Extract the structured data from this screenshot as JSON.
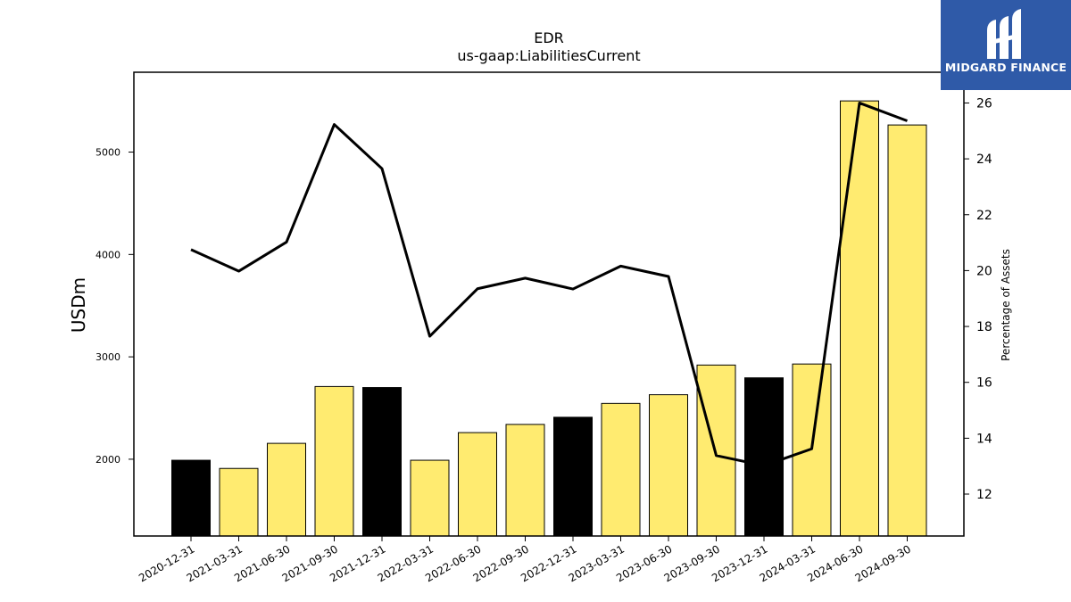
{
  "chart_data": {
    "type": "bar",
    "title": "EDR",
    "subtitle": "us-gaap:LiabilitiesCurrent",
    "ylabel": "USDm",
    "y2label": "Percentage of Assets",
    "categories": [
      "2020-12-31",
      "2021-03-31",
      "2021-06-30",
      "2021-09-30",
      "2021-12-31",
      "2022-03-31",
      "2022-06-30",
      "2022-09-30",
      "2022-12-31",
      "2023-03-31",
      "2023-06-30",
      "2023-09-30",
      "2023-12-31",
      "2024-03-31",
      "2024-06-30",
      "2024-09-30"
    ],
    "series": [
      {
        "type": "bar",
        "values": [
          1990,
          1910,
          2155,
          2710,
          2700,
          1990,
          2260,
          2340,
          2410,
          2545,
          2630,
          2920,
          2795,
          2930,
          5500,
          5265
        ],
        "colors": [
          "#000000",
          "#ffeb70",
          "#ffeb70",
          "#ffeb70",
          "#000000",
          "#ffeb70",
          "#ffeb70",
          "#ffeb70",
          "#000000",
          "#ffeb70",
          "#ffeb70",
          "#ffeb70",
          "#000000",
          "#ffeb70",
          "#ffeb70",
          "#ffeb70"
        ]
      },
      {
        "type": "line",
        "axis": "right",
        "values": [
          20.75,
          19.98,
          21.02,
          25.23,
          23.65,
          17.65,
          19.35,
          19.73,
          19.34,
          20.16,
          19.79,
          13.38,
          13.02,
          13.62,
          26.0,
          25.36
        ],
        "color": "#000000"
      }
    ],
    "yticks": [
      2000,
      3000,
      4000,
      5000
    ],
    "y2ticks": [
      12,
      14,
      16,
      18,
      20,
      22,
      24,
      26
    ],
    "ylim": [
      1250,
      5780
    ],
    "y2lim": [
      10.5,
      27.1
    ],
    "grid": false
  },
  "logo": {
    "text": "MIDGARD FINANCE",
    "color": "#2f5aa8"
  }
}
